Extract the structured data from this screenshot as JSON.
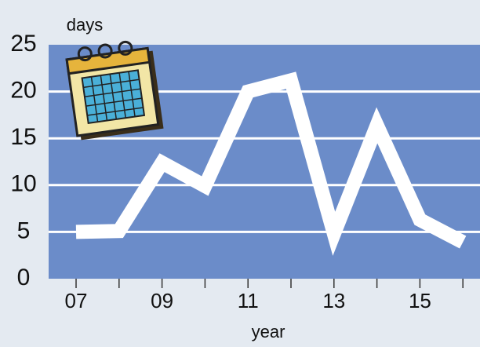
{
  "chart_data": {
    "type": "line",
    "y_label": "days",
    "x_label": "year",
    "categories": [
      "07",
      null,
      "09",
      null,
      "11",
      null,
      "13",
      null,
      "15",
      null
    ],
    "series": [
      {
        "color": "#ffffff",
        "values": [
          5.0,
          5.1,
          12.4,
          9.9,
          20.0,
          21.2,
          4.8,
          16.4,
          6.3,
          3.9
        ]
      }
    ],
    "ylim": [
      0,
      25
    ],
    "yticks": [
      0,
      5,
      10,
      15,
      20,
      25
    ],
    "grid": true
  }
}
